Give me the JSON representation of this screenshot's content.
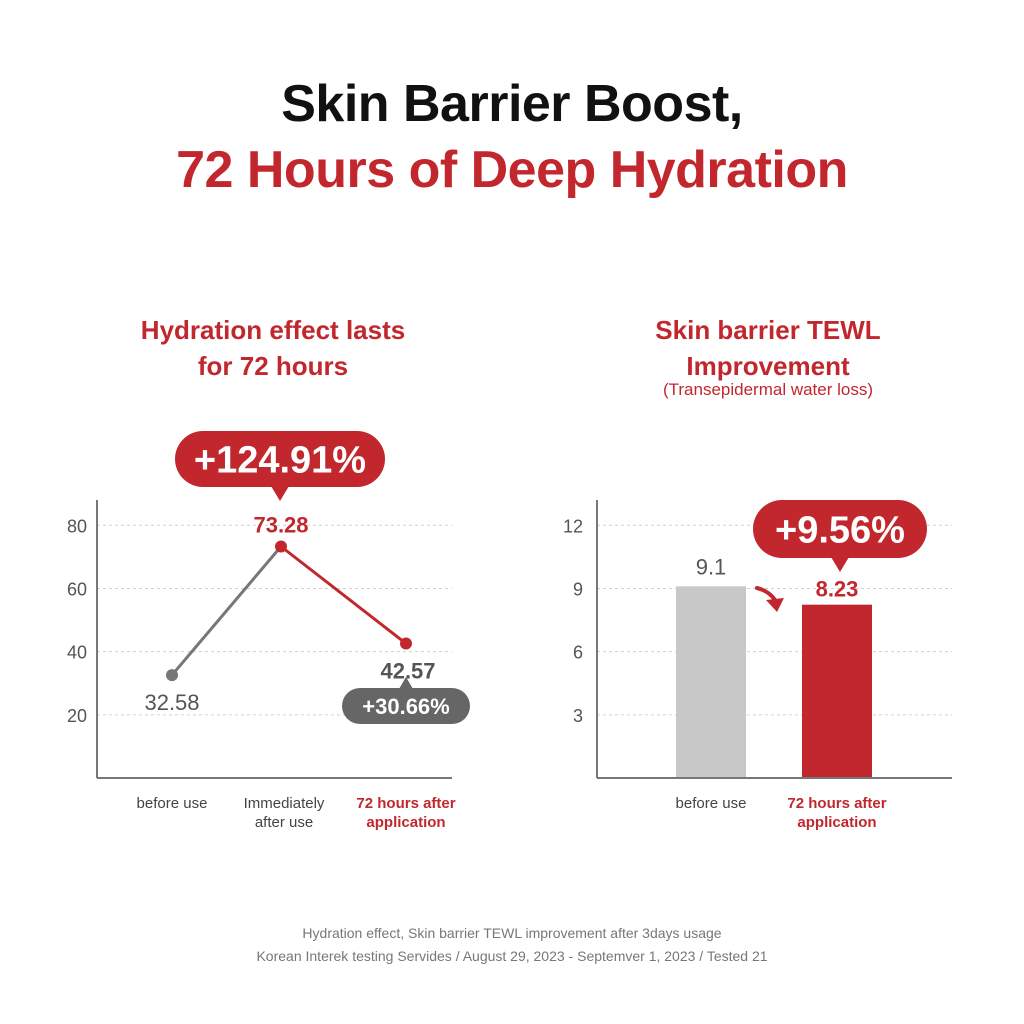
{
  "headline": {
    "line1": "Skin Barrier Boost,",
    "line2": "72 Hours of Deep Hydration"
  },
  "colors": {
    "accent": "#c1272d",
    "gray_line": "#777777",
    "gray_bar": "#c8c8c8",
    "dark_badge": "#666666"
  },
  "chart_data": [
    {
      "type": "line",
      "title": "Hydration effect lasts for 72 hours",
      "title_lines": [
        "Hydration effect lasts",
        "for 72 hours"
      ],
      "categories": [
        "before use",
        "Immediately after use",
        "72 hours after application"
      ],
      "category_lines": [
        [
          "before use"
        ],
        [
          "Immediately",
          "after use"
        ],
        [
          "72 hours after",
          "application"
        ]
      ],
      "values": [
        32.58,
        73.28,
        42.57
      ],
      "value_labels": [
        "32.58",
        "73.28",
        "42.57"
      ],
      "yticks": [
        20,
        40,
        60,
        80
      ],
      "ytick_labels": [
        "20",
        "40",
        "60",
        "80"
      ],
      "ylim": [
        0,
        88
      ],
      "grid": true,
      "annotations": [
        "+124.91%",
        "+30.66%"
      ]
    },
    {
      "type": "bar",
      "title": "Skin barrier TEWL Improvement",
      "title_lines": [
        "Skin barrier TEWL",
        "Improvement"
      ],
      "subtitle": "(Transepidermal water loss)",
      "categories": [
        "before use",
        "72 hours after application"
      ],
      "category_lines": [
        [
          "before use"
        ],
        [
          "72 hours after",
          "application"
        ]
      ],
      "values": [
        9.1,
        8.23
      ],
      "value_labels": [
        "9.1",
        "8.23"
      ],
      "yticks": [
        3,
        6,
        9,
        12
      ],
      "ytick_labels": [
        "3",
        "6",
        "9",
        "12"
      ],
      "ylim": [
        0,
        13.2
      ],
      "grid": true,
      "annotations": [
        "+9.56%"
      ]
    }
  ],
  "footnote": {
    "line1": "Hydration effect, Skin barrier TEWL improvement after 3days usage",
    "line2": "Korean Interek testing Servides / August 29, 2023 - Septemver 1, 2023 / Tested 21"
  }
}
